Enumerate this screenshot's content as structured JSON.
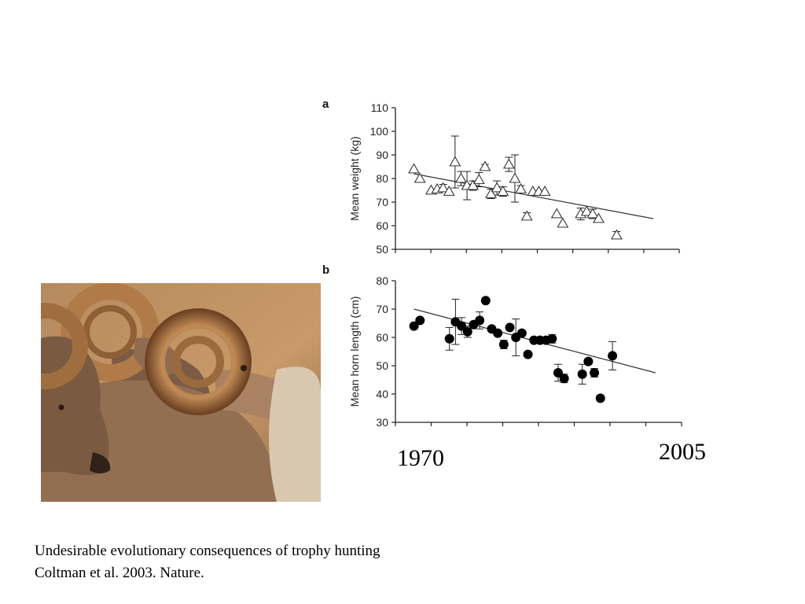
{
  "caption": {
    "line1": "Undesirable evolutionary consequences of trophy hunting",
    "line2": "Coltman et al. 2003. Nature."
  },
  "year_labels": {
    "start": "1970",
    "end": "2005"
  },
  "photo": {
    "description_icon": "bighorn-rams-photo"
  },
  "colors": {
    "axis": "#222222",
    "marker_fill_b": "#000000",
    "marker_fill_a": "#ffffff",
    "trend": "#333333"
  },
  "chart_data": [
    {
      "panel": "a",
      "type": "scatter",
      "marker": "open-triangle",
      "xlabel": "",
      "ylabel": "Mean weight (kg)",
      "ylim": [
        50,
        110
      ],
      "xlim": [
        1970,
        2005
      ],
      "yticks": [
        50,
        60,
        70,
        80,
        90,
        100,
        110
      ],
      "trend": {
        "x": [
          1971,
          2003
        ],
        "y": [
          82,
          63
        ]
      },
      "points": [
        {
          "x": 1971.0,
          "y": 84
        },
        {
          "x": 1971.8,
          "y": 80
        },
        {
          "x": 1973.3,
          "y": 75
        },
        {
          "x": 1974.1,
          "y": 75.5
        },
        {
          "x": 1974.9,
          "y": 76,
          "err": 1.5
        },
        {
          "x": 1975.7,
          "y": 74.5
        },
        {
          "x": 1976.5,
          "y": 87,
          "err": 11
        },
        {
          "x": 1977.3,
          "y": 80,
          "err": 3
        },
        {
          "x": 1978.1,
          "y": 77,
          "err": 6
        },
        {
          "x": 1978.9,
          "y": 77,
          "err": 2
        },
        {
          "x": 1979.7,
          "y": 79.5,
          "err": 3
        },
        {
          "x": 1980.5,
          "y": 85,
          "err": 1
        },
        {
          "x": 1981.3,
          "y": 73.5,
          "err": 2
        },
        {
          "x": 1982.1,
          "y": 76,
          "err": 3
        },
        {
          "x": 1982.9,
          "y": 74.5,
          "err": 2
        },
        {
          "x": 1983.7,
          "y": 86,
          "err": 3
        },
        {
          "x": 1984.5,
          "y": 80,
          "err": 10
        },
        {
          "x": 1985.3,
          "y": 75.5,
          "err": 1.5
        },
        {
          "x": 1986.1,
          "y": 64,
          "err": 1.5
        },
        {
          "x": 1986.9,
          "y": 74.5
        },
        {
          "x": 1987.7,
          "y": 74.5
        },
        {
          "x": 1988.5,
          "y": 74.5
        },
        {
          "x": 1990.1,
          "y": 65
        },
        {
          "x": 1990.9,
          "y": 61
        },
        {
          "x": 1993.3,
          "y": 65,
          "err": 2.5
        },
        {
          "x": 1994.1,
          "y": 66
        },
        {
          "x": 1994.9,
          "y": 65,
          "err": 2
        },
        {
          "x": 1995.7,
          "y": 63
        },
        {
          "x": 1998.1,
          "y": 56,
          "err": 1.5
        }
      ]
    },
    {
      "panel": "b",
      "type": "scatter",
      "marker": "filled-circle",
      "xlabel": "",
      "ylabel": "Mean horn length (cm)",
      "ylim": [
        30,
        80
      ],
      "xlim": [
        1970,
        2005
      ],
      "yticks": [
        30,
        40,
        50,
        60,
        70,
        80
      ],
      "trend": {
        "x": [
          1971,
          2003
        ],
        "y": [
          70,
          47.5
        ]
      },
      "points": [
        {
          "x": 1971.0,
          "y": 64
        },
        {
          "x": 1971.8,
          "y": 66
        },
        {
          "x": 1975.7,
          "y": 59.5,
          "err": 4
        },
        {
          "x": 1976.5,
          "y": 65.5,
          "err": 8
        },
        {
          "x": 1977.3,
          "y": 64,
          "err": 3
        },
        {
          "x": 1978.1,
          "y": 62,
          "err": 2
        },
        {
          "x": 1978.9,
          "y": 64.5
        },
        {
          "x": 1979.7,
          "y": 66,
          "err": 3
        },
        {
          "x": 1980.5,
          "y": 73
        },
        {
          "x": 1981.3,
          "y": 63
        },
        {
          "x": 1982.1,
          "y": 61.5
        },
        {
          "x": 1982.9,
          "y": 57.5,
          "err": 1.5
        },
        {
          "x": 1983.7,
          "y": 63.5
        },
        {
          "x": 1984.5,
          "y": 60,
          "err": 6.5
        },
        {
          "x": 1985.3,
          "y": 61.5
        },
        {
          "x": 1986.1,
          "y": 54
        },
        {
          "x": 1986.9,
          "y": 59
        },
        {
          "x": 1987.7,
          "y": 59
        },
        {
          "x": 1988.5,
          "y": 59
        },
        {
          "x": 1989.3,
          "y": 59.5,
          "err": 1.5
        },
        {
          "x": 1990.1,
          "y": 47.5,
          "err": 3
        },
        {
          "x": 1990.9,
          "y": 45.5,
          "err": 1.5
        },
        {
          "x": 1993.3,
          "y": 47,
          "err": 3.5
        },
        {
          "x": 1994.1,
          "y": 51.5
        },
        {
          "x": 1994.9,
          "y": 47.5,
          "err": 1.5
        },
        {
          "x": 1995.7,
          "y": 38.5
        },
        {
          "x": 1997.3,
          "y": 53.5,
          "err": 5
        }
      ]
    }
  ]
}
